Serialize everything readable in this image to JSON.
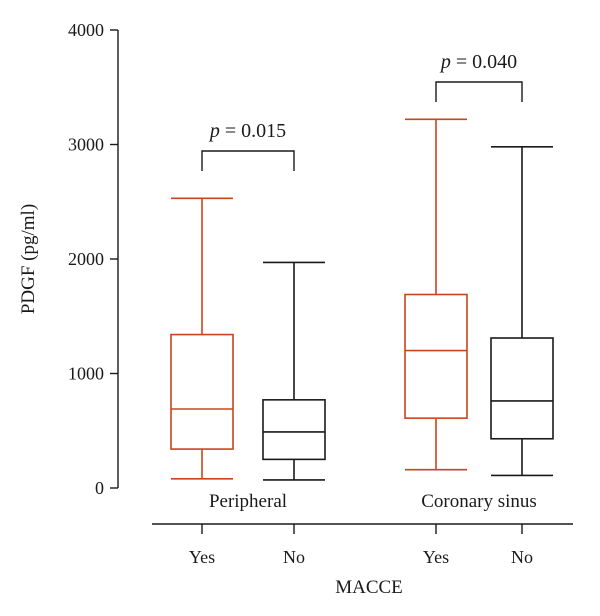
{
  "chart_data": {
    "type": "box",
    "ylabel": "PDGF (pg/ml)",
    "xlabel": "MACCE",
    "ylim": [
      0,
      4000
    ],
    "yticks": [
      0,
      1000,
      2000,
      3000,
      4000
    ],
    "groups": [
      {
        "label": "Peripheral",
        "p_prefix": "p",
        "p_value": "= 0.015",
        "boxes": [
          {
            "category": "Yes",
            "min": 80,
            "q1": 340,
            "median": 690,
            "q3": 1340,
            "max": 2530,
            "color": "#c8461e"
          },
          {
            "category": "No",
            "min": 70,
            "q1": 250,
            "median": 490,
            "q3": 770,
            "max": 1970,
            "color": "#1a1a1a"
          }
        ]
      },
      {
        "label": "Coronary sinus",
        "p_prefix": "p",
        "p_value": "= 0.040",
        "boxes": [
          {
            "category": "Yes",
            "min": 160,
            "q1": 610,
            "median": 1200,
            "q3": 1690,
            "max": 3220,
            "color": "#c8461e"
          },
          {
            "category": "No",
            "min": 110,
            "q1": 430,
            "median": 760,
            "q3": 1310,
            "max": 2980,
            "color": "#1a1a1a"
          }
        ]
      }
    ]
  }
}
